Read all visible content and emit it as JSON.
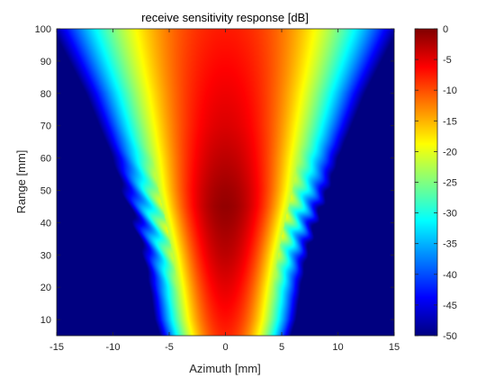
{
  "chart_data": {
    "type": "heatmap",
    "title": "receive sensitivity response [dB]",
    "xlabel": "Azimuth [mm]",
    "ylabel": "Range [mm]",
    "xlim": [
      -15,
      15
    ],
    "ylim": [
      5,
      100
    ],
    "xticks": [
      -15,
      -10,
      -5,
      0,
      5,
      10,
      15
    ],
    "yticks": [
      10,
      20,
      30,
      40,
      50,
      60,
      70,
      80,
      90,
      100
    ],
    "colormap": "jet",
    "clim": [
      -50,
      0
    ],
    "colorbar_ticks": [
      0,
      -5,
      -10,
      -15,
      -20,
      -25,
      -30,
      -35,
      -40,
      -45,
      -50
    ],
    "beam_profile": {
      "range_mm": [
        5,
        10,
        20,
        30,
        40,
        45,
        50,
        60,
        70,
        80,
        90,
        100
      ],
      "peak_db": [
        -8,
        -7,
        -5,
        -3,
        -1.5,
        -1,
        -1.5,
        -3,
        -4.5,
        -5.5,
        -6.5,
        -7.5
      ],
      "halfwidth_30db_mm": [
        4.2,
        4.6,
        5.0,
        5.5,
        6.2,
        6.6,
        7.0,
        7.6,
        8.4,
        9.2,
        10.2,
        11.2
      ]
    }
  },
  "colors": {
    "jet_stops": [
      "#00008f",
      "#0000ff",
      "#00ffff",
      "#ffff00",
      "#ff0000",
      "#800000"
    ]
  }
}
